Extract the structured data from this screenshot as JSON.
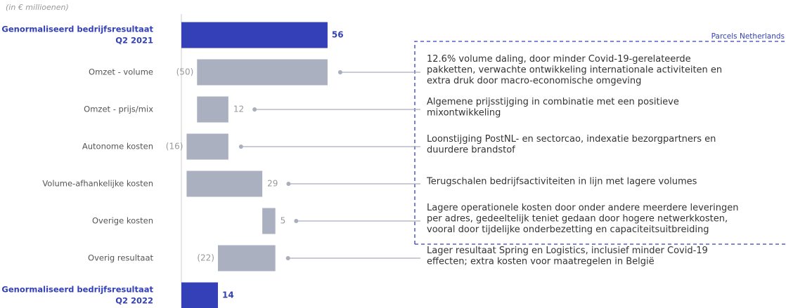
{
  "chart_data": {
    "type": "waterfall",
    "subtitle": "(in € millioenen)",
    "box_label": "Parcels Netherlands",
    "categories": [
      [
        "Genormaliseerd bedrijfsresultaat",
        "Q2 2021"
      ],
      [
        "Omzet - volume"
      ],
      [
        "Omzet - prijs/mix"
      ],
      [
        "Autonome kosten"
      ],
      [
        "Volume-afhankelijke kosten"
      ],
      [
        "Overige kosten"
      ],
      [
        "Overig resultaat"
      ],
      [
        "Genormaliseerd bedrijfsresultaat",
        "Q2 2022"
      ]
    ],
    "measure": [
      "total",
      "relative",
      "relative",
      "relative",
      "relative",
      "relative",
      "relative",
      "total"
    ],
    "values": [
      56,
      -50,
      12,
      -16,
      29,
      5,
      -22,
      14
    ],
    "value_labels": [
      "56",
      "(50)",
      "12",
      "(16)",
      "29",
      "5",
      "(22)",
      "14"
    ],
    "total_color": "#3340b8",
    "color": "#abb0c0",
    "xlim": [
      0,
      230
    ],
    "annotations": [
      null,
      [
        "12.6% volume daling, door minder Covid-19-gerelateerde",
        "pakketten, verwachte ontwikkeling internationale activiteiten en",
        "extra druk door macro-economische omgeving"
      ],
      [
        "Algemene prijsstijging in combinatie met een positieve",
        "mixontwikkeling"
      ],
      [
        "Loonstijging PostNL- en sectorcao, indexatie bezorgpartners en",
        "duurdere brandstof"
      ],
      [
        "Terugschalen bedrijfsactiviteiten in lijn met lagere volumes"
      ],
      [
        "Lagere operationele kosten door onder andere meerdere leveringen",
        "per adres, gedeeltelijk teniet gedaan door hogere netwerkkosten,",
        "vooral door tijdelijke onderbezetting en capaciteitsuitbreiding"
      ],
      [
        "Lager resultaat Spring en Logistics, inclusief minder Covid-19",
        "effecten; extra kosten voor maatregelen in België"
      ],
      null
    ]
  }
}
